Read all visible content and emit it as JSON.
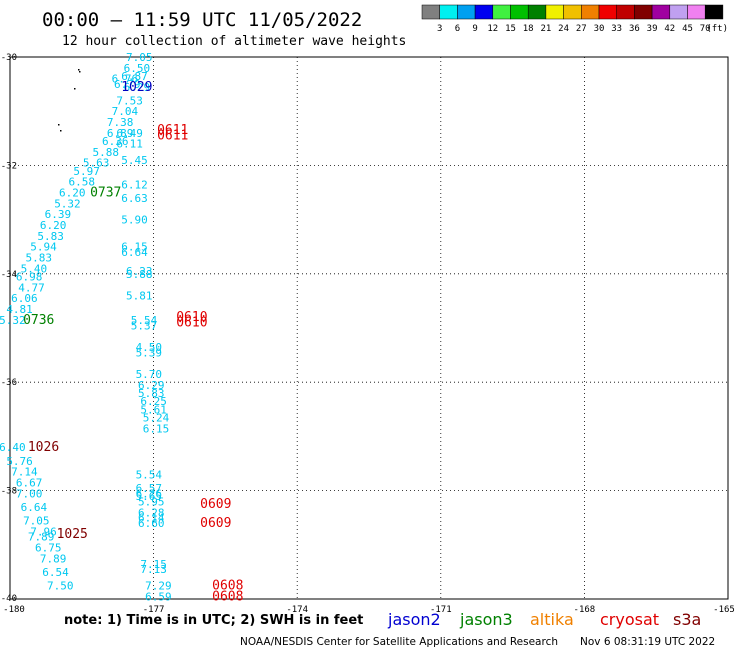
{
  "header": {
    "title": "00:00 – 11:59 UTC 11/05/2022",
    "subtitle": "12 hour collection of altimeter wave heights"
  },
  "legend": {
    "colors": [
      "#808080",
      "#00f0f0",
      "#00a0f0",
      "#0000f0",
      "#40f040",
      "#00c000",
      "#008000",
      "#f0f000",
      "#f0c000",
      "#f08000",
      "#f00000",
      "#c00000",
      "#800000",
      "#a000a0",
      "#c0a0f0",
      "#f080f0",
      "#000000"
    ],
    "labels": [
      "3",
      "6",
      "9",
      "12",
      "15",
      "18",
      "21",
      "24",
      "27",
      "30",
      "33",
      "36",
      "39",
      "42",
      "45",
      "70",
      "(ft)"
    ]
  },
  "note": {
    "text": "note:  1) Time is in UTC;  2) SWH is in feet",
    "satellites": [
      {
        "name": "jason2",
        "color": "#0000d0"
      },
      {
        "name": "jason3",
        "color": "#008000"
      },
      {
        "name": "altika",
        "color": "#f08000"
      },
      {
        "name": "cryosat",
        "color": "#e00000"
      },
      {
        "name": "s3a",
        "color": "#800000"
      }
    ]
  },
  "footer": {
    "credit": "NOAA/NESDIS Center for Satellite Applications and Research",
    "timestamp": "Nov  6 08:31:19 UTC 2022"
  },
  "chart_data": {
    "type": "scatter",
    "xlim": [
      -180,
      -165
    ],
    "ylim": [
      -40,
      -30
    ],
    "x_ticks": [
      "-180",
      "-177",
      "-174",
      "-171",
      "-168",
      "-165"
    ],
    "y_ticks": [
      "-30",
      "-32",
      "-34",
      "-36",
      "-38",
      "-40"
    ],
    "grid": true,
    "points": [
      {
        "x": -177.3,
        "y": -30.0,
        "label": "7.05",
        "color": "#00c8f0"
      },
      {
        "x": -177.35,
        "y": -30.2,
        "label": "6.50",
        "color": "#00c8f0"
      },
      {
        "x": -177.6,
        "y": -30.4,
        "label": "6.76",
        "color": "#00c8f0"
      },
      {
        "x": -177.4,
        "y": -30.35,
        "label": "6.87",
        "color": "#00c8f0"
      },
      {
        "x": -177.55,
        "y": -30.5,
        "label": "6.79",
        "color": "#00c8f0"
      },
      {
        "x": -177.35,
        "y": -30.55,
        "label": "6.29",
        "color": "#00c8f0"
      },
      {
        "x": -177.5,
        "y": -30.8,
        "label": "7.53",
        "color": "#00c8f0"
      },
      {
        "x": -177.6,
        "y": -31.0,
        "label": "7.04",
        "color": "#00c8f0"
      },
      {
        "x": -177.7,
        "y": -31.2,
        "label": "7.38",
        "color": "#00c8f0"
      },
      {
        "x": -177.7,
        "y": -31.4,
        "label": "6.89",
        "color": "#00c8f0"
      },
      {
        "x": -177.5,
        "y": -31.4,
        "label": "6.49",
        "color": "#00c8f0"
      },
      {
        "x": -177.8,
        "y": -31.55,
        "label": "6.36",
        "color": "#00c8f0"
      },
      {
        "x": -177.5,
        "y": -31.6,
        "label": "6.11",
        "color": "#00c8f0"
      },
      {
        "x": -178.0,
        "y": -31.75,
        "label": "5.88",
        "color": "#00c8f0"
      },
      {
        "x": -177.4,
        "y": -31.9,
        "label": "5.45",
        "color": "#00c8f0"
      },
      {
        "x": -178.2,
        "y": -31.95,
        "label": "5.63",
        "color": "#00c8f0"
      },
      {
        "x": -178.4,
        "y": -32.1,
        "label": "5.97",
        "color": "#00c8f0"
      },
      {
        "x": -178.5,
        "y": -32.3,
        "label": "6.58",
        "color": "#00c8f0"
      },
      {
        "x": -177.4,
        "y": -32.35,
        "label": "6.12",
        "color": "#00c8f0"
      },
      {
        "x": -178.7,
        "y": -32.5,
        "label": "6.20",
        "color": "#00c8f0"
      },
      {
        "x": -177.4,
        "y": -32.6,
        "label": "6.63",
        "color": "#00c8f0"
      },
      {
        "x": -178.8,
        "y": -32.7,
        "label": "5.32",
        "color": "#00c8f0"
      },
      {
        "x": -179.0,
        "y": -32.9,
        "label": "6.39",
        "color": "#00c8f0"
      },
      {
        "x": -177.4,
        "y": -33.0,
        "label": "5.90",
        "color": "#00c8f0"
      },
      {
        "x": -179.1,
        "y": -33.1,
        "label": "6.20",
        "color": "#00c8f0"
      },
      {
        "x": -179.15,
        "y": -33.3,
        "label": "5.83",
        "color": "#00c8f0"
      },
      {
        "x": -179.3,
        "y": -33.5,
        "label": "5.94",
        "color": "#00c8f0"
      },
      {
        "x": -177.4,
        "y": -33.5,
        "label": "6.15",
        "color": "#00c8f0"
      },
      {
        "x": -177.4,
        "y": -33.6,
        "label": "6.64",
        "color": "#00c8f0"
      },
      {
        "x": -179.4,
        "y": -33.7,
        "label": "5.83",
        "color": "#00c8f0"
      },
      {
        "x": -179.5,
        "y": -33.9,
        "label": "5.40",
        "color": "#00c8f0"
      },
      {
        "x": -177.3,
        "y": -33.95,
        "label": "6.23",
        "color": "#00c8f0"
      },
      {
        "x": -177.3,
        "y": -34.0,
        "label": "5.88",
        "color": "#00c8f0"
      },
      {
        "x": -179.6,
        "y": -34.05,
        "label": "6.98",
        "color": "#00c8f0"
      },
      {
        "x": -179.55,
        "y": -34.25,
        "label": "4.77",
        "color": "#00c8f0"
      },
      {
        "x": -179.7,
        "y": -34.45,
        "label": "6.06",
        "color": "#00c8f0"
      },
      {
        "x": -177.3,
        "y": -34.4,
        "label": "5.81",
        "color": "#00c8f0"
      },
      {
        "x": -179.8,
        "y": -34.65,
        "label": "4.81",
        "color": "#00c8f0"
      },
      {
        "x": -177.2,
        "y": -34.85,
        "label": "5.54",
        "color": "#00c8f0"
      },
      {
        "x": -179.95,
        "y": -34.85,
        "label": "5.32",
        "color": "#00c8f0"
      },
      {
        "x": -177.2,
        "y": -34.95,
        "label": "5.37",
        "color": "#00c8f0"
      },
      {
        "x": -177.1,
        "y": -35.35,
        "label": "4.50",
        "color": "#00c8f0"
      },
      {
        "x": -177.1,
        "y": -35.45,
        "label": "5.39",
        "color": "#00c8f0"
      },
      {
        "x": -177.1,
        "y": -35.85,
        "label": "5.70",
        "color": "#00c8f0"
      },
      {
        "x": -177.05,
        "y": -36.05,
        "label": "6.29",
        "color": "#00c8f0"
      },
      {
        "x": -177.05,
        "y": -36.2,
        "label": "5.83",
        "color": "#00c8f0"
      },
      {
        "x": -177.0,
        "y": -36.35,
        "label": "6.25",
        "color": "#00c8f0"
      },
      {
        "x": -177.0,
        "y": -36.5,
        "label": "5.61",
        "color": "#00c8f0"
      },
      {
        "x": -176.95,
        "y": -36.65,
        "label": "5.24",
        "color": "#00c8f0"
      },
      {
        "x": -176.95,
        "y": -36.85,
        "label": "6.15",
        "color": "#00c8f0"
      },
      {
        "x": -179.95,
        "y": -37.2,
        "label": "6.40",
        "color": "#00c8f0"
      },
      {
        "x": -179.8,
        "y": -37.45,
        "label": "5.76",
        "color": "#00c8f0"
      },
      {
        "x": -179.7,
        "y": -37.65,
        "label": "7.14",
        "color": "#00c8f0"
      },
      {
        "x": -177.1,
        "y": -37.7,
        "label": "5.54",
        "color": "#00c8f0"
      },
      {
        "x": -179.6,
        "y": -37.85,
        "label": "6.67",
        "color": "#00c8f0"
      },
      {
        "x": -177.1,
        "y": -37.95,
        "label": "6.57",
        "color": "#00c8f0"
      },
      {
        "x": -177.1,
        "y": -38.05,
        "label": "6.26",
        "color": "#00c8f0"
      },
      {
        "x": -179.6,
        "y": -38.05,
        "label": "7.00",
        "color": "#00c8f0"
      },
      {
        "x": -177.1,
        "y": -38.1,
        "label": "5.65",
        "color": "#00c8f0"
      },
      {
        "x": -177.05,
        "y": -38.2,
        "label": "5.95",
        "color": "#00c8f0"
      },
      {
        "x": -179.5,
        "y": -38.3,
        "label": "6.64",
        "color": "#00c8f0"
      },
      {
        "x": -177.05,
        "y": -38.4,
        "label": "6.28",
        "color": "#00c8f0"
      },
      {
        "x": -177.05,
        "y": -38.5,
        "label": "6.14",
        "color": "#00c8f0"
      },
      {
        "x": -179.45,
        "y": -38.55,
        "label": "7.05",
        "color": "#00c8f0"
      },
      {
        "x": -177.05,
        "y": -38.6,
        "label": "6.60",
        "color": "#00c8f0"
      },
      {
        "x": -179.3,
        "y": -38.75,
        "label": "7.96",
        "color": "#00c8f0"
      },
      {
        "x": -179.35,
        "y": -38.85,
        "label": "7.89",
        "color": "#00c8f0"
      },
      {
        "x": -179.2,
        "y": -39.05,
        "label": "6.75",
        "color": "#00c8f0"
      },
      {
        "x": -179.1,
        "y": -39.25,
        "label": "7.89",
        "color": "#00c8f0"
      },
      {
        "x": -177.0,
        "y": -39.35,
        "label": "7.15",
        "color": "#00c8f0"
      },
      {
        "x": -177.0,
        "y": -39.45,
        "label": "7.13",
        "color": "#00c8f0"
      },
      {
        "x": -179.05,
        "y": -39.5,
        "label": "6.54",
        "color": "#00c8f0"
      },
      {
        "x": -178.95,
        "y": -39.75,
        "label": "7.50",
        "color": "#00c8f0"
      },
      {
        "x": -176.9,
        "y": -39.75,
        "label": "7.29",
        "color": "#00c8f0"
      },
      {
        "x": -176.9,
        "y": -39.95,
        "label": "6.59",
        "color": "#00c8f0"
      }
    ],
    "time_labels": [
      {
        "x": -177.35,
        "y": -30.55,
        "label": "1029",
        "color": "#0000c0"
      },
      {
        "x": -176.6,
        "y": -31.35,
        "label": "0611",
        "color": "#e00000"
      },
      {
        "x": -176.6,
        "y": -31.45,
        "label": "0611",
        "color": "#e00000"
      },
      {
        "x": -178.0,
        "y": -32.5,
        "label": "0737",
        "color": "#008000"
      },
      {
        "x": -176.2,
        "y": -34.8,
        "label": "0610",
        "color": "#e00000"
      },
      {
        "x": -176.2,
        "y": -34.9,
        "label": "0610",
        "color": "#e00000"
      },
      {
        "x": -179.4,
        "y": -34.85,
        "label": "0736",
        "color": "#008000"
      },
      {
        "x": -179.3,
        "y": -37.2,
        "label": "1026",
        "color": "#800000"
      },
      {
        "x": -175.7,
        "y": -38.25,
        "label": "0609",
        "color": "#e00000"
      },
      {
        "x": -175.7,
        "y": -38.6,
        "label": "0609",
        "color": "#e00000"
      },
      {
        "x": -178.7,
        "y": -38.8,
        "label": "1025",
        "color": "#800000"
      },
      {
        "x": -175.45,
        "y": -39.75,
        "label": "0608",
        "color": "#e00000"
      },
      {
        "x": -175.45,
        "y": -39.95,
        "label": "0608",
        "color": "#e00000"
      }
    ]
  }
}
